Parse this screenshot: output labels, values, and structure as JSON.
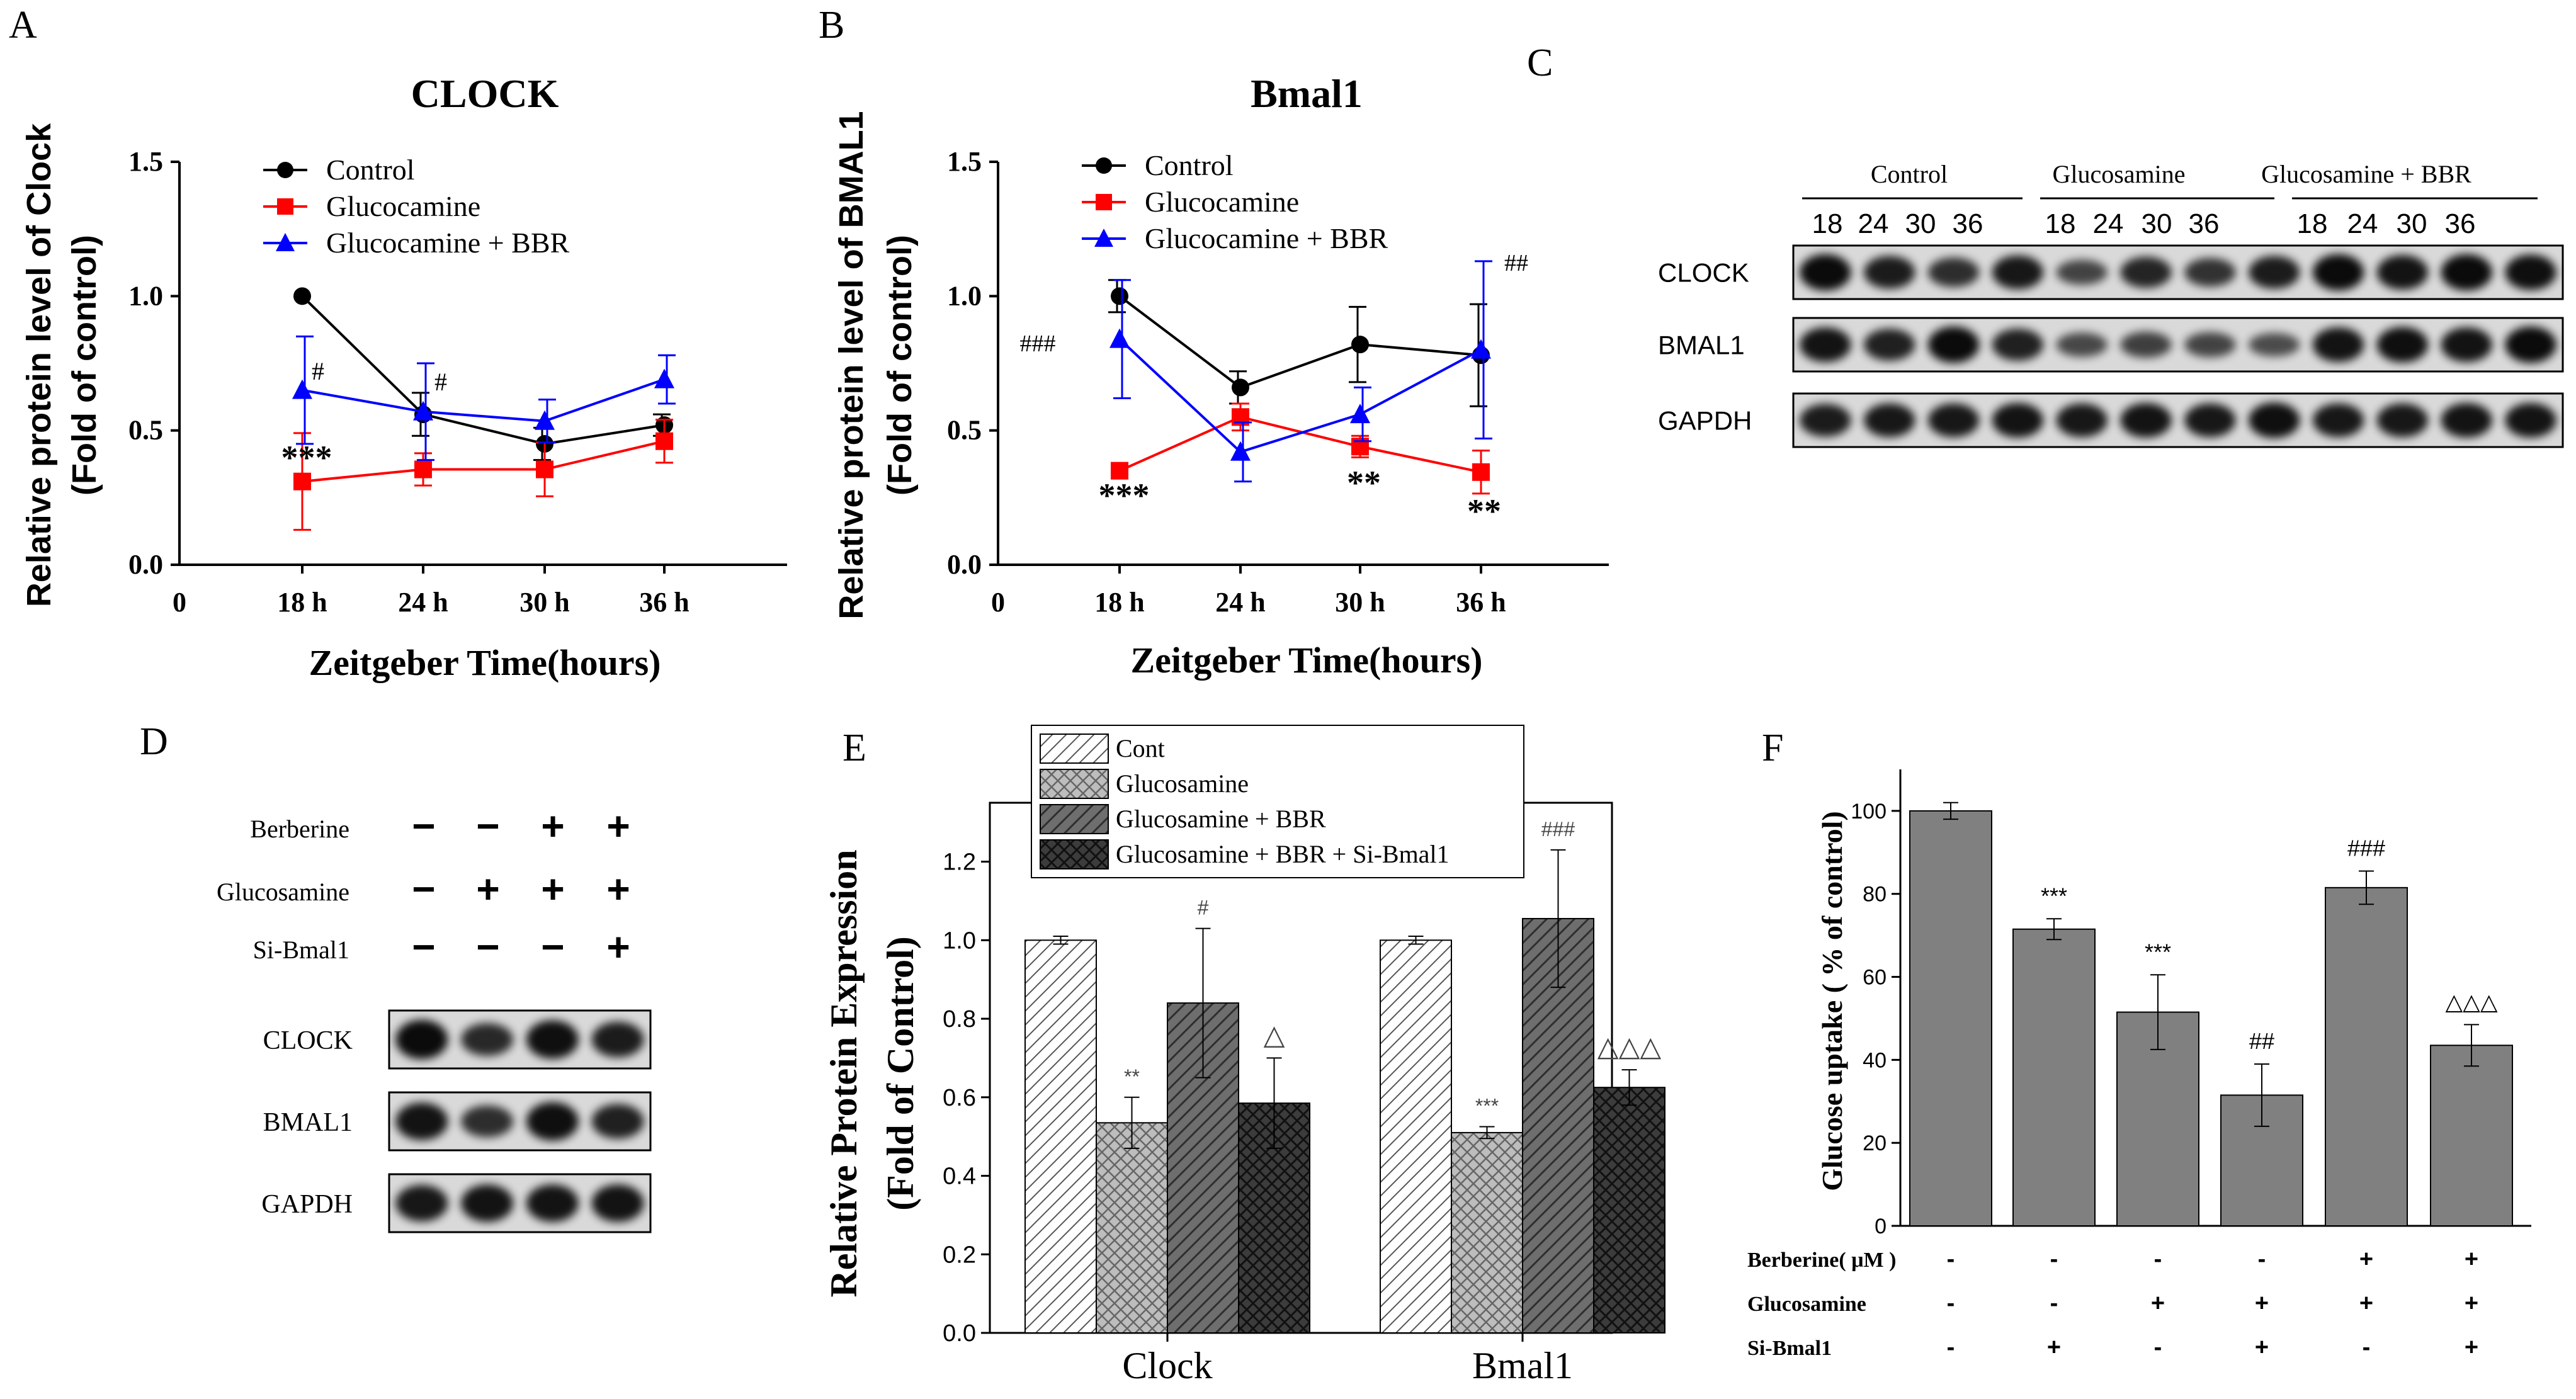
{
  "panels": {
    "A": "A",
    "B": "B",
    "C": "C",
    "D": "D",
    "E": "E",
    "F": "F"
  },
  "colors": {
    "control": "#000000",
    "glucosamine": "#ff0000",
    "bbr": "#0000ff",
    "bar_gray": "#808080"
  },
  "chart_data": [
    {
      "panel": "A",
      "type": "line",
      "title": "CLOCK",
      "xlabel": "Zeitgeber Time(hours)",
      "ylabel_line1": "Relative protein level of Clock",
      "ylabel_line2": "(Fold of control)",
      "x_origin_label": "0",
      "categories": [
        "18 h",
        "24 h",
        "30 h",
        "36 h"
      ],
      "yticks": [
        "0.0",
        "0.5",
        "1.0",
        "1.5"
      ],
      "ylim": [
        0,
        1.5
      ],
      "series": [
        {
          "name": "Control",
          "color": "#000000",
          "marker": "circle",
          "values": [
            1.0,
            0.56,
            0.45,
            0.52
          ],
          "errors": [
            0,
            0.08,
            0.06,
            0.04
          ]
        },
        {
          "name": "Glucocamine",
          "color": "#ff0000",
          "marker": "square",
          "values": [
            0.31,
            0.355,
            0.355,
            0.46
          ],
          "errors": [
            0.18,
            0.06,
            0.1,
            0.08
          ]
        },
        {
          "name": "Glucocamine + BBR",
          "color": "#0000ff",
          "marker": "triangle",
          "values": [
            0.65,
            0.57,
            0.535,
            0.69
          ],
          "errors": [
            0.2,
            0.18,
            0.08,
            0.09
          ]
        }
      ],
      "annotations": [
        "***",
        "#",
        "#"
      ]
    },
    {
      "panel": "B",
      "type": "line",
      "title": "Bmal1",
      "xlabel": "Zeitgeber Time(hours)",
      "ylabel_line1": "Relative protein level of BMAL1",
      "ylabel_line2": "(Fold of control)",
      "x_origin_label": "0",
      "categories": [
        "18 h",
        "24 h",
        "30 h",
        "36 h"
      ],
      "yticks": [
        "0.0",
        "0.5",
        "1.0",
        "1.5"
      ],
      "ylim": [
        0,
        1.5
      ],
      "series": [
        {
          "name": "Control",
          "color": "#000000",
          "marker": "circle",
          "values": [
            1.0,
            0.66,
            0.82,
            0.78
          ],
          "errors": [
            0.06,
            0.06,
            0.14,
            0.19
          ]
        },
        {
          "name": "Glucocamine",
          "color": "#ff0000",
          "marker": "square",
          "values": [
            0.35,
            0.55,
            0.44,
            0.345
          ],
          "errors": [
            0,
            0.05,
            0.04,
            0.08
          ]
        },
        {
          "name": "Glucocamine + BBR",
          "color": "#0000ff",
          "marker": "triangle",
          "values": [
            0.84,
            0.42,
            0.56,
            0.8
          ],
          "errors": [
            0.22,
            0.11,
            0.1,
            0.33
          ]
        }
      ],
      "annotations": [
        "###",
        "***",
        "**",
        "**",
        "##"
      ]
    },
    {
      "panel": "E",
      "type": "bar",
      "ylabel_line1": "Relative Protein Expression",
      "ylabel_line2": "(Fold of Control)",
      "categories": [
        "Clock",
        "Bmal1"
      ],
      "yticks": [
        "0.0",
        "0.2",
        "0.4",
        "0.6",
        "0.8",
        "1.0",
        "1.2"
      ],
      "ylim": [
        0,
        1.35
      ],
      "series": [
        {
          "name": "Cont",
          "pattern": "diag",
          "values": [
            1.0,
            1.0
          ],
          "errors": [
            0.01,
            0.01
          ]
        },
        {
          "name": "Glucosamine",
          "pattern": "cross",
          "values": [
            0.535,
            0.51
          ],
          "errors": [
            0.065,
            0.015
          ]
        },
        {
          "name": "Glucosamine + BBR",
          "pattern": "dark",
          "values": [
            0.84,
            1.055
          ],
          "errors": [
            0.19,
            0.175
          ]
        },
        {
          "name": "Glucosamine + BBR + Si-Bmal1",
          "pattern": "darkcross",
          "values": [
            0.585,
            0.625
          ],
          "errors": [
            0.115,
            0.045
          ]
        }
      ],
      "annotations": [
        [
          "",
          "**",
          "#",
          "△"
        ],
        [
          "",
          "***",
          "###",
          "△△△"
        ]
      ]
    },
    {
      "panel": "F",
      "type": "bar",
      "ylabel": "Glucose uptake ( % of control)",
      "yticks": [
        "0",
        "20",
        "40",
        "60",
        "80",
        "100"
      ],
      "ylim": [
        0,
        110
      ],
      "values": [
        100,
        71.5,
        51.5,
        31.5,
        81.5,
        43.5
      ],
      "errors": [
        2,
        2.5,
        9,
        7.5,
        4,
        5
      ],
      "annotations": [
        "",
        "***",
        "***",
        "##",
        "###",
        "△△△"
      ],
      "rows": [
        {
          "label": "Berberine( μM )",
          "signs": [
            "-",
            "-",
            "-",
            "-",
            "+",
            "+"
          ]
        },
        {
          "label": "Glucosamine",
          "signs": [
            "-",
            "-",
            "+",
            "+",
            "+",
            "+"
          ]
        },
        {
          "label": "Si-Bmal1",
          "signs": [
            "-",
            "+",
            "-",
            "+",
            "-",
            "+"
          ]
        }
      ]
    }
  ],
  "blotC": {
    "groups": [
      "Control",
      "Glucosamine",
      "Glucosamine + BBR"
    ],
    "times": [
      "18",
      "24",
      "30",
      "36",
      "18",
      "24",
      "30",
      "36",
      "18",
      "24",
      "30",
      "36"
    ],
    "rows": [
      "CLOCK",
      "BMAL1",
      "GAPDH"
    ]
  },
  "blotD": {
    "treatments": [
      {
        "label": "Berberine",
        "signs": [
          "−",
          "−",
          "+",
          "+"
        ]
      },
      {
        "label": "Glucosamine",
        "signs": [
          "−",
          "+",
          "+",
          "+"
        ]
      },
      {
        "label": "Si-Bmal1",
        "signs": [
          "−",
          "−",
          "−",
          "+"
        ]
      }
    ],
    "rows": [
      "CLOCK",
      "BMAL1",
      "GAPDH"
    ]
  }
}
